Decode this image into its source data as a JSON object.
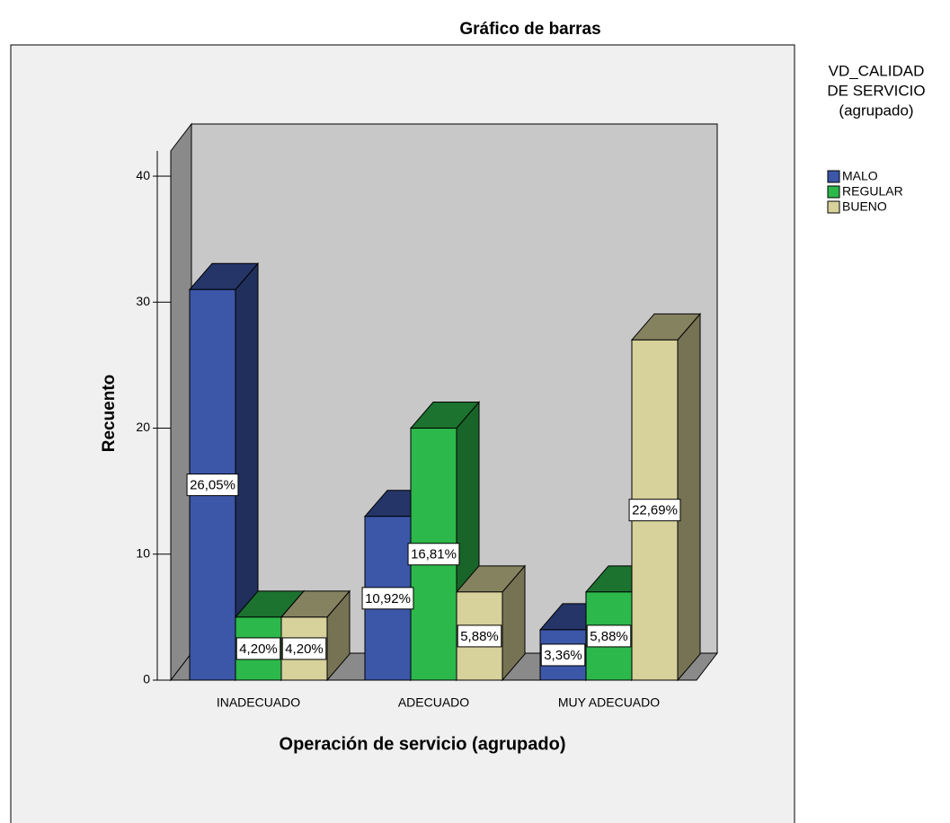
{
  "chart_data": {
    "type": "bar3d",
    "title": "Gráfico de barras",
    "x_label": "Operación de servicio (agrupado)",
    "y_label": "Recuento",
    "legend_title": [
      "VD_CALIDAD",
      "DE SERVICIO",
      "(agrupado)"
    ],
    "categories": [
      "INADECUADO",
      "ADECUADO",
      "MUY ADECUADO"
    ],
    "series": [
      {
        "name": "MALO",
        "color": "#3c56a8",
        "values": [
          31,
          13,
          4
        ],
        "value_labels": [
          "26,05%",
          "10,92%",
          "3,36%"
        ]
      },
      {
        "name": "REGULAR",
        "color": "#2db84b",
        "values": [
          5,
          20,
          7
        ],
        "value_labels": [
          "4,20%",
          "16,81%",
          "5,88%"
        ]
      },
      {
        "name": "BUENO",
        "color": "#d7d19b",
        "values": [
          5,
          7,
          27
        ],
        "value_labels": [
          "4,20%",
          "5,88%",
          "22,69%"
        ]
      }
    ],
    "ylim": [
      0,
      42
    ],
    "yticks": [
      0,
      10,
      20,
      30,
      40
    ],
    "grid": false,
    "legend": "right"
  }
}
